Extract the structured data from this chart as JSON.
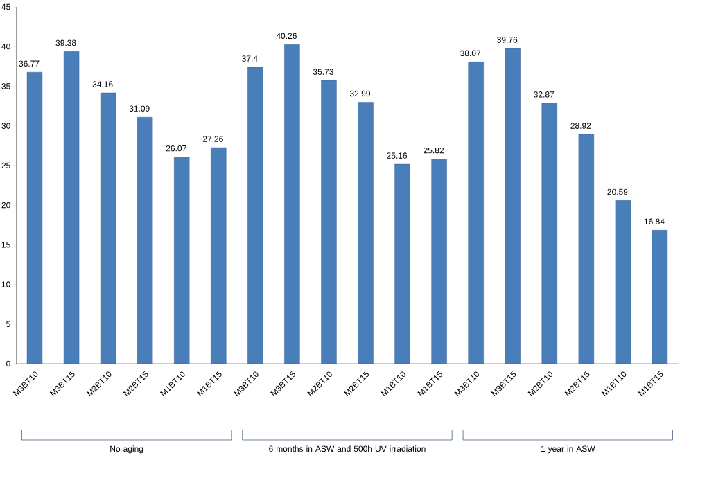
{
  "chart_data": {
    "type": "bar",
    "categories": [
      "M3BT10",
      "M3BT15",
      "M2BT10",
      "M2BT15",
      "M1BT10",
      "M1BT15",
      "M3BT10",
      "M3BT15",
      "M2BT10",
      "M2BT15",
      "M1BT10",
      "M1BT15",
      "M3BT10",
      "M3BT15",
      "M2BT10",
      "M2BT15",
      "M1BT10",
      "M1BT15"
    ],
    "values": [
      36.77,
      39.38,
      34.16,
      31.09,
      26.07,
      27.26,
      37.4,
      40.26,
      35.73,
      32.99,
      25.16,
      25.82,
      38.07,
      39.76,
      32.87,
      28.92,
      20.59,
      16.84
    ],
    "color": "#4a7ebb",
    "data_labels": true,
    "grid": false,
    "ylim": [
      0,
      45
    ],
    "yticks": [
      0,
      5,
      10,
      15,
      20,
      25,
      30,
      35,
      40,
      45
    ],
    "annotations": [
      "No aging",
      "6 months in ASW and 500h UV irradiation",
      "1 year in ASW"
    ]
  }
}
